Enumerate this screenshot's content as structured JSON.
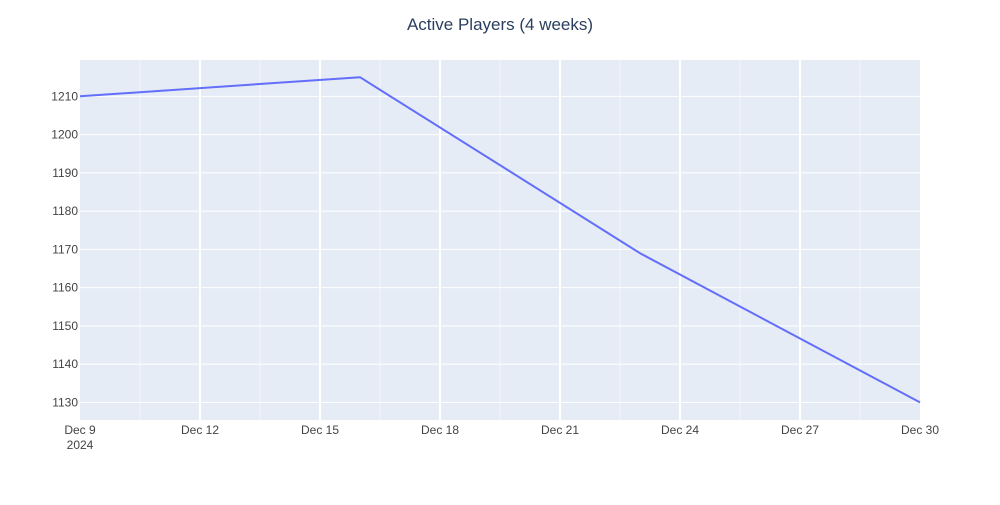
{
  "chart_data": {
    "type": "line",
    "title": "Active Players (4 weeks)",
    "xlabel": "",
    "ylabel": "",
    "x_tick_labels": [
      "Dec 9",
      "Dec 12",
      "Dec 15",
      "Dec 18",
      "Dec 21",
      "Dec 24",
      "Dec 27",
      "Dec 30"
    ],
    "x_tick_year_label": "2024",
    "y_tick_labels": [
      "1130",
      "1140",
      "1150",
      "1160",
      "1170",
      "1180",
      "1190",
      "1200",
      "1210"
    ],
    "x_range": [
      "2024-12-09",
      "2024-12-30"
    ],
    "y_range": [
      1125.4,
      1219.5
    ],
    "grid": true,
    "legend": "none",
    "series": [
      {
        "x": [
          "2024-12-09",
          "2024-12-16",
          "2024-12-23",
          "2024-12-30"
        ],
        "y": [
          1210,
          1215,
          1169,
          1130
        ]
      }
    ],
    "colors": {
      "line": "#636efa",
      "plot_background": "#e5ecf6",
      "grid": "#ffffff",
      "text": "#2a3f5f",
      "tick_text": "#444444"
    }
  }
}
